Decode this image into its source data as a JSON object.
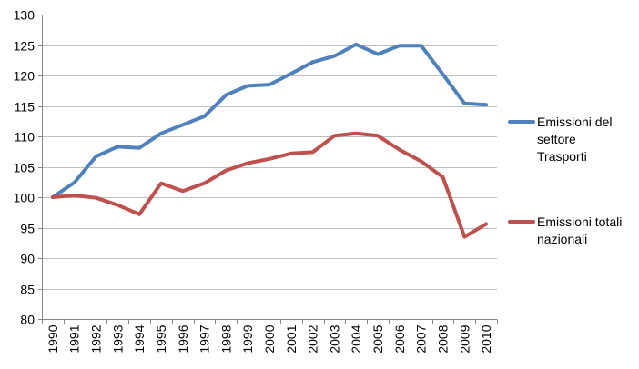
{
  "chart_data": {
    "type": "line",
    "title": "",
    "xlabel": "",
    "ylabel": "",
    "x": [
      "1990",
      "1991",
      "1992",
      "1993",
      "1994",
      "1995",
      "1996",
      "1997",
      "1998",
      "1999",
      "2000",
      "2001",
      "2002",
      "2003",
      "2004",
      "2005",
      "2006",
      "2007",
      "2008",
      "2009",
      "2010"
    ],
    "ylim": [
      80,
      130
    ],
    "yticks": [
      80,
      85,
      90,
      95,
      100,
      105,
      110,
      115,
      120,
      125,
      130
    ],
    "grid": "horizontal",
    "legend_position": "right",
    "series": [
      {
        "name": "Emissioni del settore Trasporti",
        "legend_lines": [
          "Emissioni del",
          "settore",
          "Trasporti"
        ],
        "color": "#4f81bd",
        "values": [
          100.0,
          102.4,
          106.7,
          108.3,
          108.1,
          110.5,
          111.9,
          113.3,
          116.8,
          118.3,
          118.5,
          120.3,
          122.2,
          123.2,
          125.1,
          123.5,
          124.9,
          124.9,
          120.2,
          115.4,
          115.2
        ]
      },
      {
        "name": "Emissioni totali nazionali",
        "legend_lines": [
          "Emissioni totali",
          "nazionali"
        ],
        "color": "#c0504d",
        "values": [
          100.0,
          100.3,
          99.9,
          98.7,
          97.2,
          102.3,
          101.0,
          102.3,
          104.4,
          105.6,
          106.3,
          107.2,
          107.4,
          110.1,
          110.5,
          110.1,
          107.8,
          105.9,
          103.3,
          93.5,
          95.6
        ]
      }
    ]
  }
}
